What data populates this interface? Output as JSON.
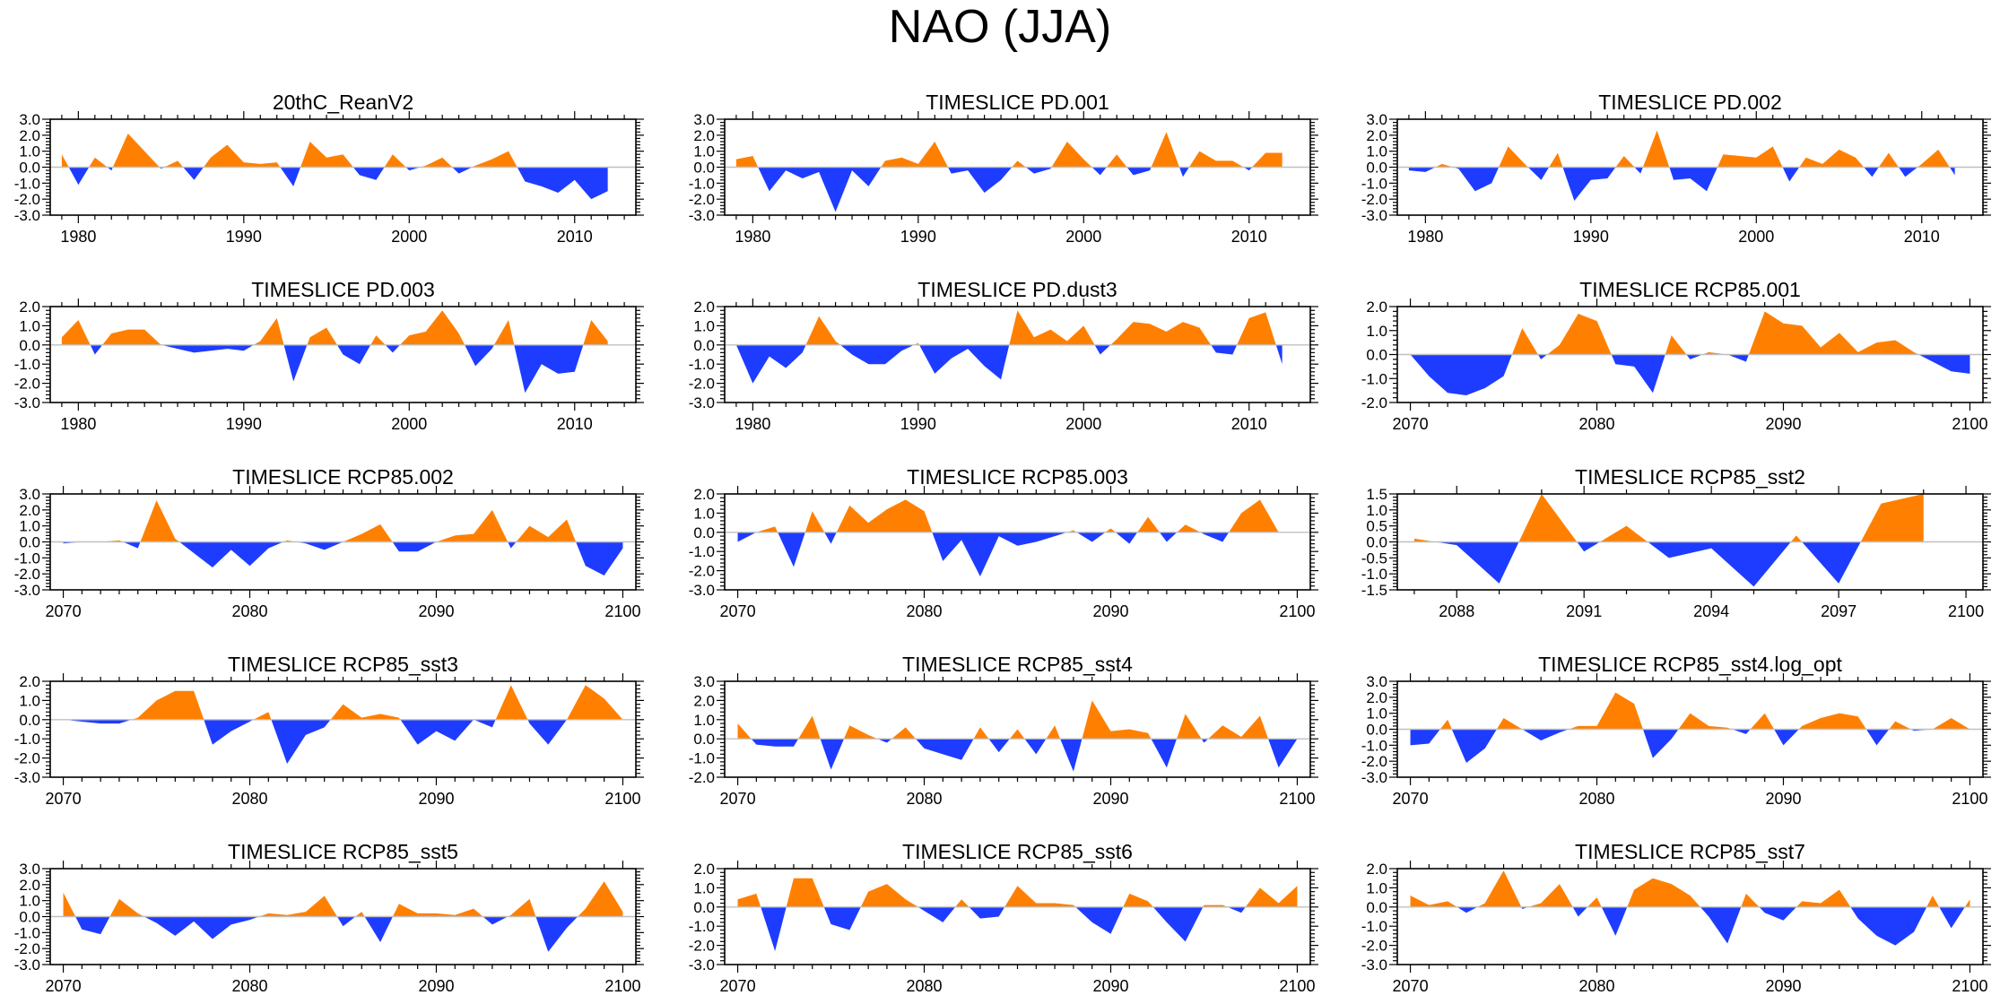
{
  "title": "NAO (JJA)",
  "colors": {
    "positive": "#ff8000",
    "negative": "#1e3cff",
    "axis": "#000000",
    "zero_line": "#c0c0c0"
  },
  "chart_data": [
    {
      "type": "area",
      "title": "20thC_ReanV2",
      "x_start": 1979,
      "xlim": [
        1978.3,
        2013.7
      ],
      "xticks": [
        1980,
        1990,
        2000,
        2010
      ],
      "xtick_labels": [
        "1980",
        "1990",
        "2000",
        "2010"
      ],
      "ylim": [
        -3,
        3
      ],
      "yticks": [
        -3,
        -2,
        -1,
        0,
        1,
        2,
        3
      ],
      "ytick_labels": [
        "-3.0",
        "-2.0",
        "-1.0",
        "0.0",
        "1.0",
        "2.0",
        "3.0"
      ],
      "values": [
        0.8,
        -1.1,
        0.6,
        -0.2,
        2.1,
        1.0,
        -0.1,
        0.4,
        -0.8,
        0.6,
        1.4,
        0.3,
        0.2,
        0.3,
        -1.2,
        1.6,
        0.6,
        0.8,
        -0.5,
        -0.8,
        0.8,
        -0.2,
        0.1,
        0.6,
        -0.4,
        0.1,
        0.5,
        1.0,
        -0.9,
        -1.2,
        -1.6,
        -0.8,
        -2.0,
        -1.5
      ]
    },
    {
      "type": "area",
      "title": "TIMESLICE PD.001",
      "x_start": 1979,
      "xlim": [
        1978.3,
        2013.7
      ],
      "xticks": [
        1980,
        1990,
        2000,
        2010
      ],
      "xtick_labels": [
        "1980",
        "1990",
        "2000",
        "2010"
      ],
      "ylim": [
        -3,
        3
      ],
      "yticks": [
        -3,
        -2,
        -1,
        0,
        1,
        2,
        3
      ],
      "ytick_labels": [
        "-3.0",
        "-2.0",
        "-1.0",
        "0.0",
        "1.0",
        "2.0",
        "3.0"
      ],
      "values": [
        0.5,
        0.7,
        -1.5,
        -0.2,
        -0.7,
        -0.3,
        -2.8,
        -0.2,
        -1.2,
        0.4,
        0.6,
        0.2,
        1.6,
        -0.4,
        -0.2,
        -1.6,
        -0.8,
        0.4,
        -0.4,
        -0.1,
        1.6,
        0.5,
        -0.5,
        0.8,
        -0.5,
        -0.2,
        2.2,
        -0.6,
        1.0,
        0.4,
        0.4,
        -0.2,
        0.9,
        0.9
      ]
    },
    {
      "type": "area",
      "title": "TIMESLICE PD.002",
      "x_start": 1979,
      "xlim": [
        1978.3,
        2013.7
      ],
      "xticks": [
        1980,
        1990,
        2000,
        2010
      ],
      "xtick_labels": [
        "1980",
        "1990",
        "2000",
        "2010"
      ],
      "ylim": [
        -3,
        3
      ],
      "yticks": [
        -3,
        -2,
        -1,
        0,
        1,
        2,
        3
      ],
      "ytick_labels": [
        "-3.0",
        "-2.0",
        "-1.0",
        "0.0",
        "1.0",
        "2.0",
        "3.0"
      ],
      "values": [
        -0.2,
        -0.3,
        0.2,
        -0.1,
        -1.5,
        -1.0,
        1.3,
        0.2,
        -0.8,
        0.9,
        -2.1,
        -0.8,
        -0.7,
        0.7,
        -0.4,
        2.3,
        -0.8,
        -0.7,
        -1.5,
        0.8,
        0.7,
        0.6,
        1.3,
        -0.9,
        0.6,
        0.2,
        1.1,
        0.6,
        -0.6,
        0.9,
        -0.6,
        0.2,
        1.1,
        -0.5
      ]
    },
    {
      "type": "area",
      "title": "TIMESLICE PD.003",
      "x_start": 1979,
      "xlim": [
        1978.3,
        2013.7
      ],
      "xticks": [
        1980,
        1990,
        2000,
        2010
      ],
      "xtick_labels": [
        "1980",
        "1990",
        "2000",
        "2010"
      ],
      "ylim": [
        -3,
        2
      ],
      "yticks": [
        -3,
        -2,
        -1,
        0,
        1,
        2
      ],
      "ytick_labels": [
        "-3.0",
        "-2.0",
        "-1.0",
        "0.0",
        "1.0",
        "2.0"
      ],
      "values": [
        0.4,
        1.3,
        -0.5,
        0.6,
        0.8,
        0.8,
        0.0,
        -0.2,
        -0.4,
        -0.3,
        -0.2,
        -0.3,
        0.2,
        1.4,
        -1.9,
        0.4,
        0.9,
        -0.5,
        -1.0,
        0.5,
        -0.4,
        0.5,
        0.7,
        1.8,
        0.6,
        -1.1,
        -0.2,
        1.3,
        -2.5,
        -1.0,
        -1.5,
        -1.4,
        1.3,
        0.2
      ]
    },
    {
      "type": "area",
      "title": "TIMESLICE PD.dust3",
      "x_start": 1979,
      "xlim": [
        1978.3,
        2013.7
      ],
      "xticks": [
        1980,
        1990,
        2000,
        2010
      ],
      "xtick_labels": [
        "1980",
        "1990",
        "2000",
        "2010"
      ],
      "ylim": [
        -3,
        2
      ],
      "yticks": [
        -3,
        -2,
        -1,
        0,
        1,
        2
      ],
      "ytick_labels": [
        "-3.0",
        "-2.0",
        "-1.0",
        "0.0",
        "1.0",
        "2.0"
      ],
      "values": [
        0.0,
        -2.0,
        -0.6,
        -1.2,
        -0.4,
        1.5,
        0.2,
        -0.5,
        -1.0,
        -1.0,
        -0.3,
        0.1,
        -1.5,
        -0.7,
        -0.2,
        -1.1,
        -1.8,
        1.8,
        0.4,
        0.8,
        0.2,
        1.0,
        -0.5,
        0.3,
        1.2,
        1.1,
        0.7,
        1.2,
        0.9,
        -0.4,
        -0.5,
        1.4,
        1.7,
        -1.0
      ]
    },
    {
      "type": "area",
      "title": "TIMESLICE RCP85.001",
      "x_start": 2070,
      "xlim": [
        2069.3,
        2100.7
      ],
      "xticks": [
        2070,
        2080,
        2090,
        2100
      ],
      "xtick_labels": [
        "2070",
        "2080",
        "2090",
        "2100"
      ],
      "ylim": [
        -2,
        2
      ],
      "yticks": [
        -2,
        -1,
        0,
        1,
        2
      ],
      "ytick_labels": [
        "-2.0",
        "-1.0",
        "0.0",
        "1.0",
        "2.0"
      ],
      "values": [
        0.0,
        -0.9,
        -1.6,
        -1.7,
        -1.4,
        -0.9,
        1.1,
        -0.2,
        0.4,
        1.7,
        1.4,
        -0.4,
        -0.5,
        -1.6,
        0.8,
        -0.2,
        0.1,
        0.0,
        -0.3,
        1.8,
        1.3,
        1.2,
        0.3,
        0.9,
        0.1,
        0.5,
        0.6,
        0.1,
        -0.3,
        -0.7,
        -0.8
      ]
    },
    {
      "type": "area",
      "title": "TIMESLICE RCP85.002",
      "x_start": 2070,
      "xlim": [
        2069.3,
        2100.7
      ],
      "xticks": [
        2070,
        2080,
        2090,
        2100
      ],
      "xtick_labels": [
        "2070",
        "2080",
        "2090",
        "2100"
      ],
      "ylim": [
        -3,
        3
      ],
      "yticks": [
        -3,
        -2,
        -1,
        0,
        1,
        2,
        3
      ],
      "ytick_labels": [
        "-3.0",
        "-2.0",
        "-1.0",
        "0.0",
        "1.0",
        "2.0",
        "3.0"
      ],
      "values": [
        -0.1,
        0.0,
        0.0,
        0.1,
        -0.4,
        2.6,
        0.2,
        -0.7,
        -1.6,
        -0.5,
        -1.5,
        -0.4,
        0.1,
        -0.1,
        -0.5,
        0.0,
        0.5,
        1.1,
        -0.6,
        -0.6,
        0.0,
        0.4,
        0.5,
        2.0,
        -0.4,
        1.0,
        0.3,
        1.4,
        -1.5,
        -2.1,
        -0.4
      ]
    },
    {
      "type": "area",
      "title": "TIMESLICE RCP85.003",
      "x_start": 2070,
      "xlim": [
        2069.3,
        2100.7
      ],
      "xticks": [
        2070,
        2080,
        2090,
        2100
      ],
      "xtick_labels": [
        "2070",
        "2080",
        "2090",
        "2100"
      ],
      "ylim": [
        -3,
        2
      ],
      "yticks": [
        -3,
        -2,
        -1,
        0,
        1,
        2
      ],
      "ytick_labels": [
        "-3.0",
        "-2.0",
        "-1.0",
        "0.0",
        "1.0",
        "2.0"
      ],
      "values": [
        -0.5,
        0.0,
        0.3,
        -1.8,
        1.1,
        -0.6,
        1.4,
        0.5,
        1.2,
        1.7,
        1.1,
        -1.5,
        -0.4,
        -2.3,
        -0.2,
        -0.7,
        -0.5,
        -0.2,
        0.1,
        -0.5,
        0.2,
        -0.6,
        0.8,
        -0.5,
        0.4,
        -0.1,
        -0.5,
        1.0,
        1.7,
        0.0,
        0.0
      ]
    },
    {
      "type": "area",
      "title": "TIMESLICE RCP85_sst2",
      "x_start": 2087,
      "xlim": [
        2086.6,
        2100.4
      ],
      "xticks": [
        2088,
        2091,
        2094,
        2097,
        2100
      ],
      "xtick_labels": [
        "2088",
        "2091",
        "2094",
        "2097",
        "2100"
      ],
      "ylim": [
        -1.5,
        1.5
      ],
      "yticks": [
        -1.5,
        -1,
        -0.5,
        0,
        0.5,
        1,
        1.5
      ],
      "ytick_labels": [
        "-1.5",
        "-1.0",
        "-0.5",
        "0.0",
        "0.5",
        "1.0",
        "1.5"
      ],
      "values": [
        0.1,
        -0.1,
        -1.3,
        1.5,
        -0.3,
        0.5,
        -0.5,
        -0.2,
        -1.4,
        0.2,
        -1.3,
        1.2,
        1.5
      ]
    },
    {
      "type": "area",
      "title": "TIMESLICE RCP85_sst3",
      "x_start": 2070,
      "xlim": [
        2069.3,
        2100.7
      ],
      "xticks": [
        2070,
        2080,
        2090,
        2100
      ],
      "xtick_labels": [
        "2070",
        "2080",
        "2090",
        "2100"
      ],
      "ylim": [
        -3,
        2
      ],
      "yticks": [
        -3,
        -2,
        -1,
        0,
        1,
        2
      ],
      "ytick_labels": [
        "-3.0",
        "-2.0",
        "-1.0",
        "0.0",
        "1.0",
        "2.0"
      ],
      "values": [
        0.0,
        -0.1,
        -0.2,
        -0.2,
        0.1,
        1.0,
        1.5,
        1.5,
        -1.3,
        -0.6,
        -0.1,
        0.4,
        -2.3,
        -0.8,
        -0.4,
        0.8,
        0.1,
        0.3,
        0.1,
        -1.3,
        -0.6,
        -1.1,
        0.0,
        -0.4,
        1.8,
        -0.2,
        -1.3,
        0.0,
        1.8,
        1.1,
        0.0
      ]
    },
    {
      "type": "area",
      "title": "TIMESLICE RCP85_sst4",
      "x_start": 2070,
      "xlim": [
        2069.3,
        2100.7
      ],
      "xticks": [
        2070,
        2080,
        2090,
        2100
      ],
      "xtick_labels": [
        "2070",
        "2080",
        "2090",
        "2100"
      ],
      "ylim": [
        -2,
        3
      ],
      "yticks": [
        -2,
        -1,
        0,
        1,
        2,
        3
      ],
      "ytick_labels": [
        "-2.0",
        "-1.0",
        "0.0",
        "1.0",
        "2.0",
        "3.0"
      ],
      "values": [
        0.8,
        -0.3,
        -0.4,
        -0.4,
        1.2,
        -1.6,
        0.7,
        0.2,
        -0.2,
        0.6,
        -0.5,
        -0.8,
        -1.1,
        0.6,
        -0.7,
        0.5,
        -0.8,
        0.7,
        -1.7,
        2.0,
        0.4,
        0.5,
        0.3,
        -1.5,
        1.3,
        -0.2,
        0.7,
        0.1,
        1.2,
        -1.5,
        0.0
      ]
    },
    {
      "type": "area",
      "title": "TIMESLICE RCP85_sst4.log_opt",
      "x_start": 2070,
      "xlim": [
        2069.3,
        2100.7
      ],
      "xticks": [
        2070,
        2080,
        2090,
        2100
      ],
      "xtick_labels": [
        "2070",
        "2080",
        "2090",
        "2100"
      ],
      "ylim": [
        -3,
        3
      ],
      "yticks": [
        -3,
        -2,
        -1,
        0,
        1,
        2,
        3
      ],
      "ytick_labels": [
        "-3.0",
        "-2.0",
        "-1.0",
        "0.0",
        "1.0",
        "2.0",
        "3.0"
      ],
      "values": [
        -1.0,
        -0.9,
        0.6,
        -2.1,
        -1.2,
        0.7,
        0.0,
        -0.7,
        -0.2,
        0.2,
        0.2,
        2.3,
        1.6,
        -1.8,
        -0.6,
        1.0,
        0.2,
        0.1,
        -0.3,
        1.0,
        -1.0,
        0.2,
        0.7,
        1.0,
        0.8,
        -1.0,
        0.5,
        -0.1,
        0.0,
        0.7,
        0.0
      ]
    },
    {
      "type": "area",
      "title": "TIMESLICE RCP85_sst5",
      "x_start": 2070,
      "xlim": [
        2069.3,
        2100.7
      ],
      "xticks": [
        2070,
        2080,
        2090,
        2100
      ],
      "xtick_labels": [
        "2070",
        "2080",
        "2090",
        "2100"
      ],
      "ylim": [
        -3,
        3
      ],
      "yticks": [
        -3,
        -2,
        -1,
        0,
        1,
        2,
        3
      ],
      "ytick_labels": [
        "-3.0",
        "-2.0",
        "-1.0",
        "0.0",
        "1.0",
        "2.0",
        "3.0"
      ],
      "values": [
        1.5,
        -0.8,
        -1.1,
        1.1,
        0.2,
        -0.4,
        -1.2,
        -0.3,
        -1.4,
        -0.5,
        -0.2,
        0.2,
        0.1,
        0.3,
        1.3,
        -0.6,
        0.3,
        -1.6,
        0.8,
        0.2,
        0.2,
        0.1,
        0.5,
        -0.5,
        0.1,
        1.1,
        -2.2,
        -0.7,
        0.5,
        2.2,
        0.3
      ]
    },
    {
      "type": "area",
      "title": "TIMESLICE RCP85_sst6",
      "x_start": 2070,
      "xlim": [
        2069.3,
        2100.7
      ],
      "xticks": [
        2070,
        2080,
        2090,
        2100
      ],
      "xtick_labels": [
        "2070",
        "2080",
        "2090",
        "2100"
      ],
      "ylim": [
        -3,
        2
      ],
      "yticks": [
        -3,
        -2,
        -1,
        0,
        1,
        2
      ],
      "ytick_labels": [
        "-3.0",
        "-2.0",
        "-1.0",
        "0.0",
        "1.0",
        "2.0"
      ],
      "values": [
        0.4,
        0.7,
        -2.3,
        1.5,
        1.5,
        -0.9,
        -1.2,
        0.8,
        1.2,
        0.4,
        -0.2,
        -0.8,
        0.4,
        -0.6,
        -0.5,
        1.1,
        0.2,
        0.2,
        0.1,
        -0.8,
        -1.4,
        0.7,
        0.3,
        -0.8,
        -1.8,
        0.1,
        0.1,
        -0.3,
        1.0,
        0.2,
        1.1
      ]
    },
    {
      "type": "area",
      "title": "TIMESLICE RCP85_sst7",
      "x_start": 2070,
      "xlim": [
        2069.3,
        2100.7
      ],
      "xticks": [
        2070,
        2080,
        2090,
        2100
      ],
      "xtick_labels": [
        "2070",
        "2080",
        "2090",
        "2100"
      ],
      "ylim": [
        -3,
        2
      ],
      "yticks": [
        -3,
        -2,
        -1,
        0,
        1,
        2
      ],
      "ytick_labels": [
        "-3.0",
        "-2.0",
        "-1.0",
        "0.0",
        "1.0",
        "2.0"
      ],
      "values": [
        0.6,
        0.1,
        0.3,
        -0.3,
        0.2,
        1.9,
        -0.1,
        0.2,
        1.2,
        -0.5,
        0.5,
        -1.5,
        0.9,
        1.5,
        1.2,
        0.6,
        -0.5,
        -1.9,
        0.7,
        -0.3,
        -0.7,
        0.3,
        0.2,
        0.9,
        -0.6,
        -1.5,
        -2.0,
        -1.3,
        0.6,
        -1.1,
        0.4
      ]
    }
  ]
}
